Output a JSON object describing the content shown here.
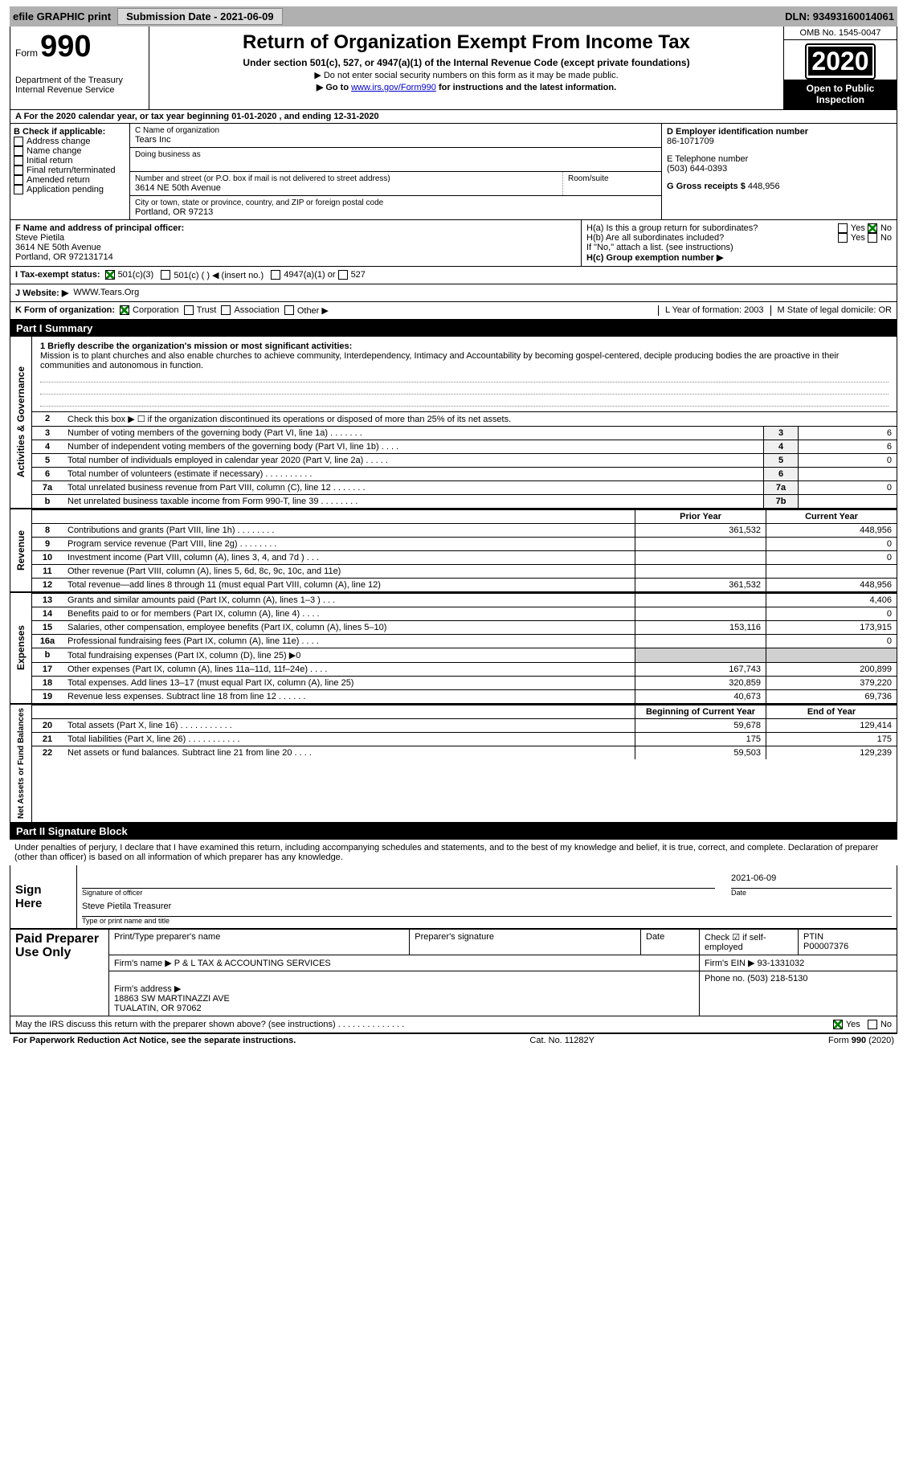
{
  "topbar": {
    "efile": "efile GRAPHIC print",
    "submission": "Submission Date - 2021-06-09",
    "dln": "DLN: 93493160014061"
  },
  "header": {
    "form_label": "Form",
    "form_number": "990",
    "dept": "Department of the Treasury\nInternal Revenue Service",
    "title": "Return of Organization Exempt From Income Tax",
    "subtitle": "Under section 501(c), 527, or 4947(a)(1) of the Internal Revenue Code (except private foundations)",
    "note1": "▶ Do not enter social security numbers on this form as it may be made public.",
    "note2_pre": "▶ Go to ",
    "note2_link": "www.irs.gov/Form990",
    "note2_post": " for instructions and the latest information.",
    "omb": "OMB No. 1545-0047",
    "year": "2020",
    "inspection": "Open to Public Inspection"
  },
  "row_a": "A For the 2020 calendar year, or tax year beginning 01-01-2020   , and ending 12-31-2020",
  "col_b": {
    "head": "B Check if applicable:",
    "items": [
      "Address change",
      "Name change",
      "Initial return",
      "Final return/terminated",
      "Amended return",
      "Application pending"
    ]
  },
  "col_c": {
    "name_label": "C Name of organization",
    "name": "Tears Inc",
    "dba_label": "Doing business as",
    "addr_label": "Number and street (or P.O. box if mail is not delivered to street address)",
    "room_label": "Room/suite",
    "addr": "3614 NE 50th Avenue",
    "city_label": "City or town, state or province, country, and ZIP or foreign postal code",
    "city": "Portland, OR  97213"
  },
  "col_d": {
    "ein_label": "D Employer identification number",
    "ein": "86-1071709",
    "tel_label": "E Telephone number",
    "tel": "(503) 644-0393",
    "gross_label": "G Gross receipts $ ",
    "gross": "448,956"
  },
  "officer": {
    "label": "F  Name and address of principal officer:",
    "name": "Steve Pietila",
    "addr1": "3614 NE 50th Avenue",
    "addr2": "Portland, OR  972131714",
    "ha": "H(a)  Is this a group return for subordinates?",
    "hb": "H(b)  Are all subordinates included?",
    "hb_note": "If \"No,\" attach a list. (see instructions)",
    "hc": "H(c)  Group exemption number ▶"
  },
  "status": {
    "i": "I   Tax-exempt status:",
    "opts": [
      "501(c)(3)",
      "501(c) (  )  ◀ (insert no.)",
      "4947(a)(1) or",
      "527"
    ],
    "j": "J  Website: ▶",
    "website": "WWW.Tears.Org"
  },
  "form_org": {
    "k": "K Form of organization:",
    "opts": [
      "Corporation",
      "Trust",
      "Association",
      "Other ▶"
    ],
    "l": "L Year of formation: 2003",
    "m": "M State of legal domicile: OR"
  },
  "part1": {
    "title": "Part I     Summary",
    "mission_label": "1  Briefly describe the organization's mission or most significant activities:",
    "mission": "Mission is to plant churches and also enable churches to achieve community, Interdependency, Intimacy and Accountability by becoming gospel-centered, deciple producing bodies the are proactive in their communities and autonomous in function."
  },
  "governance_label": "Activities & Governance",
  "revenue_label": "Revenue",
  "expenses_label": "Expenses",
  "netassets_label": "Net Assets or Fund Balances",
  "gov_rows": [
    {
      "n": "2",
      "txt": "Check this box ▶ ☐  if the organization discontinued its operations or disposed of more than 25% of its net assets."
    },
    {
      "n": "3",
      "txt": "Number of voting members of the governing body (Part VI, line 1a)  .    .    .    .    .    .    .",
      "box": "3",
      "val": "6"
    },
    {
      "n": "4",
      "txt": "Number of independent voting members of the governing body (Part VI, line 1b)   .    .    .    .",
      "box": "4",
      "val": "6"
    },
    {
      "n": "5",
      "txt": "Total number of individuals employed in calendar year 2020 (Part V, line 2a)   .    .    .    .    .",
      "box": "5",
      "val": "0"
    },
    {
      "n": "6",
      "txt": "Total number of volunteers (estimate if necessary)   .    .    .    .    .    .    .    .    .    .",
      "box": "6",
      "val": ""
    },
    {
      "n": "7a",
      "txt": "Total unrelated business revenue from Part VIII, column (C), line 12   .    .    .    .    .    .    .",
      "box": "7a",
      "val": "0"
    },
    {
      "n": "b",
      "txt": "Net unrelated business taxable income from Form 990-T, line 39   .    .    .    .    .    .    .    .",
      "box": "7b",
      "val": ""
    }
  ],
  "yearcols": {
    "py": "Prior Year",
    "cy": "Current Year"
  },
  "rev_rows": [
    {
      "n": "8",
      "txt": "Contributions and grants (Part VIII, line 1h)   .    .    .    .    .    .    .    .",
      "py": "361,532",
      "cy": "448,956"
    },
    {
      "n": "9",
      "txt": "Program service revenue (Part VIII, line 2g)   .    .    .    .    .    .    .    .",
      "py": "",
      "cy": "0"
    },
    {
      "n": "10",
      "txt": "Investment income (Part VIII, column (A), lines 3, 4, and 7d )   .    .    .",
      "py": "",
      "cy": "0"
    },
    {
      "n": "11",
      "txt": "Other revenue (Part VIII, column (A), lines 5, 6d, 8c, 9c, 10c, and 11e)",
      "py": "",
      "cy": ""
    },
    {
      "n": "12",
      "txt": "Total revenue—add lines 8 through 11 (must equal Part VIII, column (A), line 12)",
      "py": "361,532",
      "cy": "448,956"
    }
  ],
  "exp_rows": [
    {
      "n": "13",
      "txt": "Grants and similar amounts paid (Part IX, column (A), lines 1–3 )   .    .    .",
      "py": "",
      "cy": "4,406"
    },
    {
      "n": "14",
      "txt": "Benefits paid to or for members (Part IX, column (A), line 4)   .    .    .    .",
      "py": "",
      "cy": "0"
    },
    {
      "n": "15",
      "txt": "Salaries, other compensation, employee benefits (Part IX, column (A), lines 5–10)",
      "py": "153,116",
      "cy": "173,915"
    },
    {
      "n": "16a",
      "txt": "Professional fundraising fees (Part IX, column (A), line 11e)   .    .    .    .",
      "py": "",
      "cy": "0"
    },
    {
      "n": "b",
      "txt": "Total fundraising expenses (Part IX, column (D), line 25) ▶0",
      "py": "SHADE",
      "cy": "SHADE"
    },
    {
      "n": "17",
      "txt": "Other expenses (Part IX, column (A), lines 11a–11d, 11f–24e)   .    .    .    .",
      "py": "167,743",
      "cy": "200,899"
    },
    {
      "n": "18",
      "txt": "Total expenses. Add lines 13–17 (must equal Part IX, column (A), line 25)",
      "py": "320,859",
      "cy": "379,220"
    },
    {
      "n": "19",
      "txt": "Revenue less expenses. Subtract line 18 from line 12   .    .    .    .    .    .",
      "py": "40,673",
      "cy": "69,736"
    }
  ],
  "na_head": {
    "py": "Beginning of Current Year",
    "cy": "End of Year"
  },
  "na_rows": [
    {
      "n": "20",
      "txt": "Total assets (Part X, line 16)   .    .    .    .    .    .    .    .    .    .    .",
      "py": "59,678",
      "cy": "129,414"
    },
    {
      "n": "21",
      "txt": "Total liabilities (Part X, line 26)   .    .    .    .    .    .    .    .    .    .    .",
      "py": "175",
      "cy": "175"
    },
    {
      "n": "22",
      "txt": "Net assets or fund balances. Subtract line 21 from line 20   .    .    .    .",
      "py": "59,503",
      "cy": "129,239"
    }
  ],
  "part2": {
    "title": "Part II    Signature Block",
    "penalties": "Under penalties of perjury, I declare that I have examined this return, including accompanying schedules and statements, and to the best of my knowledge and belief, it is true, correct, and complete. Declaration of preparer (other than officer) is based on all information of which preparer has any knowledge."
  },
  "sign": {
    "left": "Sign Here",
    "sig_officer": "Signature of officer",
    "date": "2021-06-09",
    "date_lbl": "Date",
    "name": "Steve Pietila  Treasurer",
    "name_lbl": "Type or print name and title"
  },
  "prep": {
    "left": "Paid Preparer Use Only",
    "c1": "Print/Type preparer's name",
    "c2": "Preparer's signature",
    "c3": "Date",
    "c4a": "Check ☑ if self-employed",
    "c4b": "PTIN",
    "ptin": "P00007376",
    "firm_lbl": "Firm's name    ▶",
    "firm": "P & L TAX & ACCOUNTING SERVICES",
    "ein_lbl": "Firm's EIN ▶",
    "ein": "93-1331032",
    "addr_lbl": "Firm's address ▶",
    "addr": "18863 SW MARTINAZZI AVE\nTUALATIN, OR  97062",
    "phone_lbl": "Phone no.",
    "phone": "(503) 218-5130"
  },
  "discuss": "May the IRS discuss this return with the preparer shown above? (see instructions)   .    .    .    .    .    .    .    .    .    .    .    .    .    .",
  "footer": {
    "left": "For Paperwork Reduction Act Notice, see the separate instructions.",
    "mid": "Cat. No. 11282Y",
    "right": "Form 990 (2020)"
  },
  "yes": "Yes",
  "no": "No"
}
